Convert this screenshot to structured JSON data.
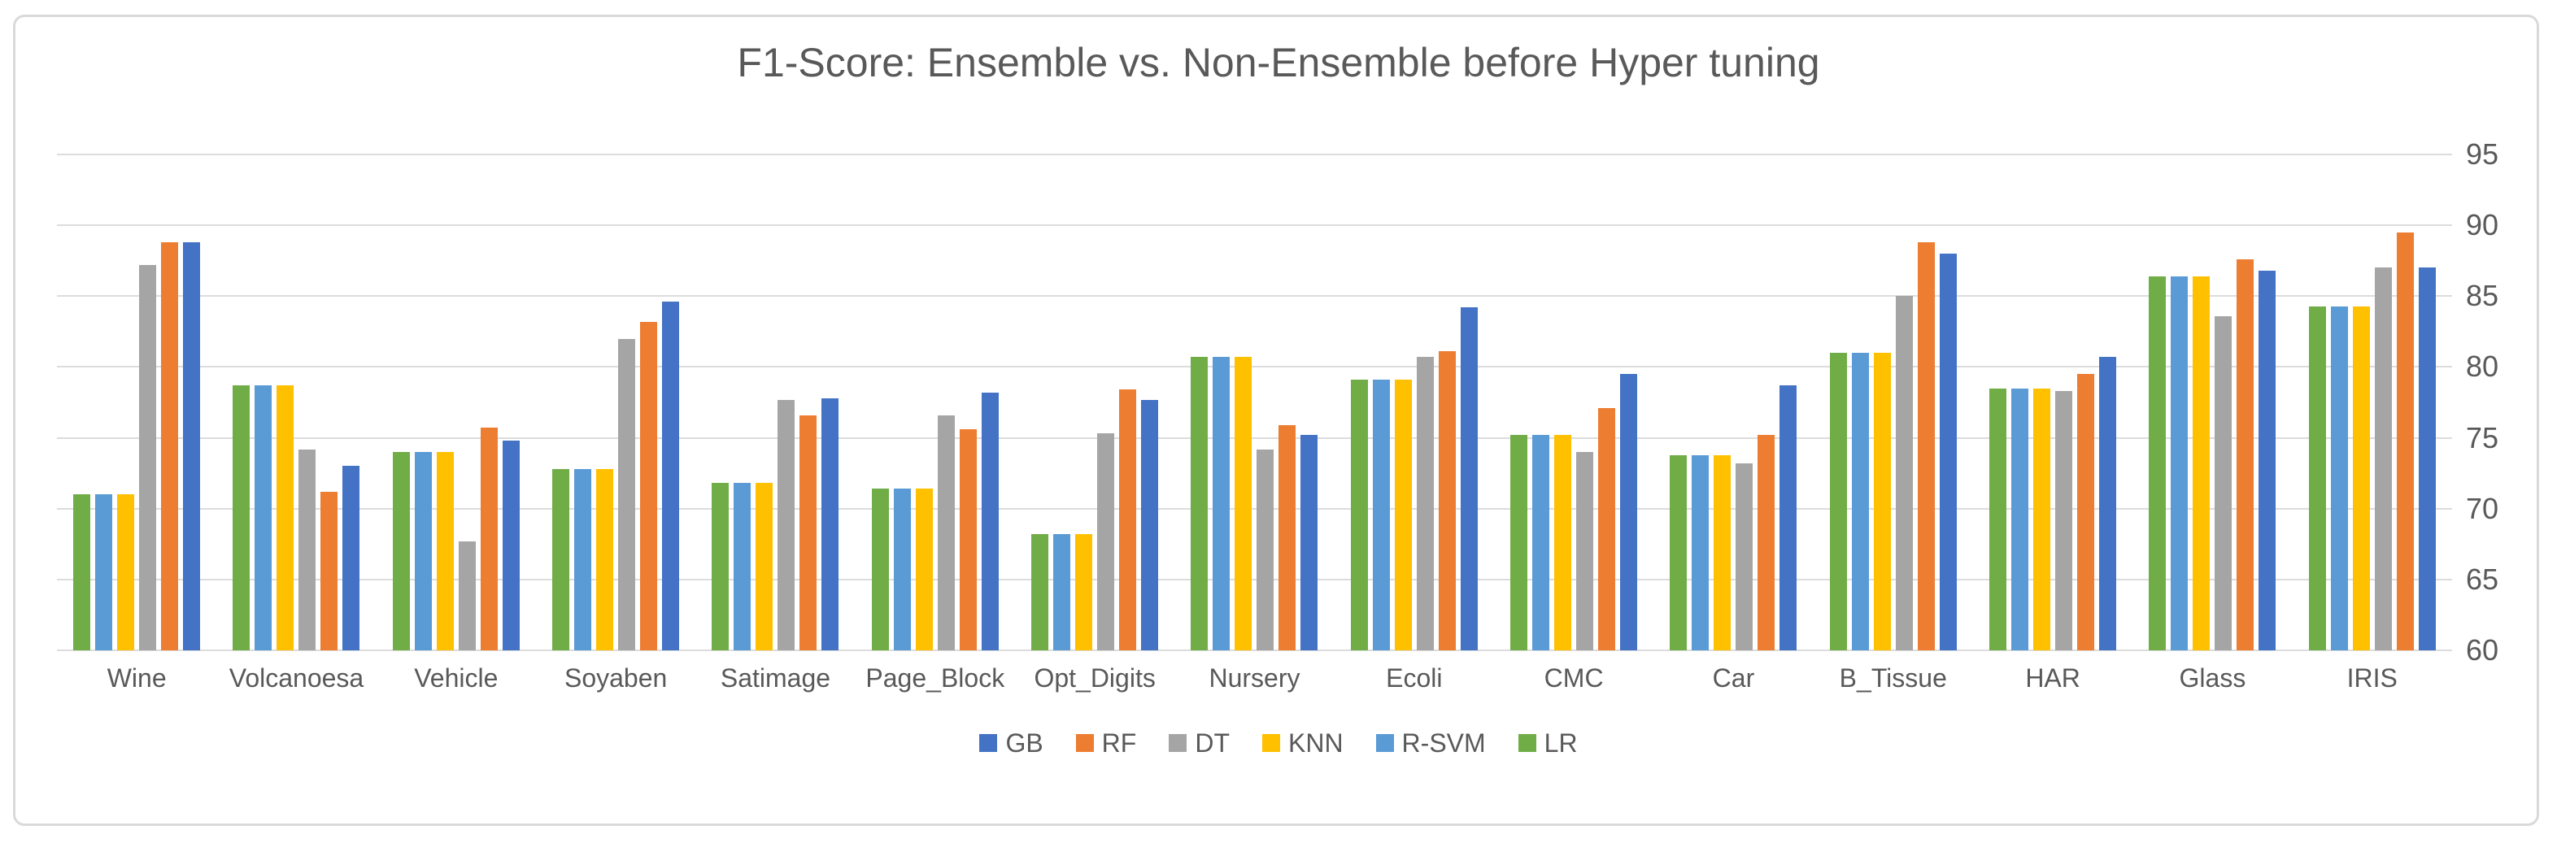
{
  "frame": {
    "border_color": "#d9d9d9",
    "background": "#ffffff"
  },
  "text_color": "#595959",
  "gridline_color": "#dcdcdc",
  "chart_data": {
    "type": "bar",
    "title": "F1-Score: Ensemble vs. Non-Ensemble before Hyper tuning",
    "categories": [
      "Wine",
      "Volcanoesa",
      "Vehicle",
      "Soyaben",
      "Satimage",
      "Page_Block",
      "Opt_Digits",
      "Nursery",
      "Ecoli",
      "CMC",
      "Car",
      "B_Tissue",
      "HAR",
      "Glass",
      "IRIS"
    ],
    "series": [
      {
        "name": "GB",
        "color": "#4472C4",
        "values": [
          88.8,
          73.0,
          74.8,
          84.6,
          77.8,
          78.2,
          77.7,
          75.2,
          84.2,
          79.5,
          78.7,
          88.0,
          80.7,
          86.8,
          87.0
        ]
      },
      {
        "name": "RF",
        "color": "#ED7D31",
        "values": [
          88.8,
          71.2,
          75.7,
          83.2,
          76.6,
          75.6,
          78.4,
          75.9,
          81.1,
          77.1,
          75.2,
          88.8,
          79.5,
          87.6,
          89.5
        ]
      },
      {
        "name": "DT",
        "color": "#A5A5A5",
        "values": [
          87.2,
          74.2,
          67.7,
          82.0,
          77.7,
          76.6,
          75.3,
          74.2,
          80.7,
          74.0,
          73.2,
          85.0,
          78.3,
          83.6,
          87.0
        ]
      },
      {
        "name": "KNN",
        "color": "#FFC000",
        "values": [
          71.0,
          78.7,
          74.0,
          72.8,
          71.8,
          71.4,
          68.2,
          80.7,
          79.1,
          75.2,
          73.8,
          81.0,
          78.5,
          86.4,
          84.3
        ]
      },
      {
        "name": "R-SVM",
        "color": "#5B9BD5",
        "values": [
          71.0,
          78.7,
          74.0,
          72.8,
          71.8,
          71.4,
          68.2,
          80.7,
          79.1,
          75.2,
          73.8,
          81.0,
          78.5,
          86.4,
          84.3
        ]
      },
      {
        "name": "LR",
        "color": "#70AD47",
        "values": [
          71.0,
          78.7,
          74.0,
          72.8,
          71.8,
          71.4,
          68.2,
          80.7,
          79.1,
          75.2,
          73.8,
          81.0,
          78.5,
          86.4,
          84.3
        ]
      }
    ],
    "display_order": [
      "LR",
      "R-SVM",
      "KNN",
      "DT",
      "RF",
      "GB"
    ],
    "ylim": [
      60,
      95
    ],
    "yticks": [
      95,
      90,
      85,
      80,
      75,
      70,
      65,
      60
    ],
    "y_axis_side": "right",
    "legend_position": "bottom",
    "grid": true
  }
}
